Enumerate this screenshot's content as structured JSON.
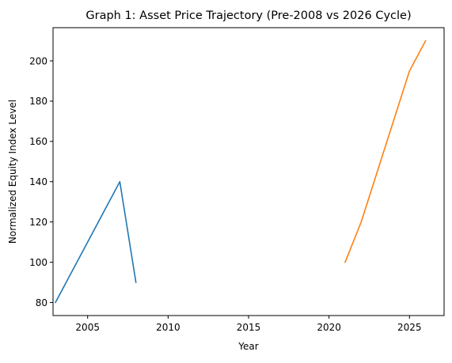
{
  "chart_data": {
    "type": "line",
    "title": "Graph 1: Asset Price Trajectory (Pre-2008 vs 2026 Cycle)",
    "xlabel": "Year",
    "ylabel": "Normalized Equity Index Level",
    "xlim": [
      2002.85,
      2027.15
    ],
    "ylim": [
      73.5,
      216.5
    ],
    "xticks": [
      2005,
      2010,
      2015,
      2020,
      2025
    ],
    "yticks": [
      80,
      100,
      120,
      140,
      160,
      180,
      200
    ],
    "grid": false,
    "series": [
      {
        "color": "#1f77b4",
        "x": [
          2003,
          2004,
          2005,
          2006,
          2007,
          2008
        ],
        "y": [
          80,
          95,
          110,
          125,
          140,
          90
        ]
      },
      {
        "color": "#ff7f0e",
        "x": [
          2021,
          2022,
          2023,
          2024,
          2025,
          2026
        ],
        "y": [
          100,
          120,
          145,
          170,
          195,
          210
        ]
      }
    ]
  }
}
